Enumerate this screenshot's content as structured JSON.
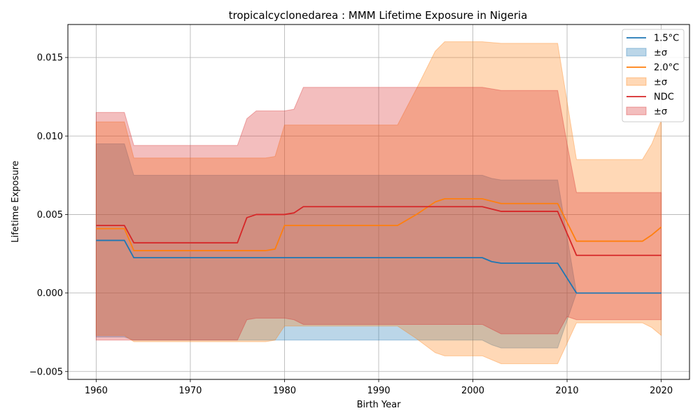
{
  "chart_data": {
    "type": "line",
    "title": "tropicalcyclonedarea : MMM Lifetime Exposure in Nigeria",
    "xlabel": "Birth Year",
    "ylabel": "Lifetime Exposure",
    "xlim": [
      1957,
      2023
    ],
    "ylim": [
      -0.0055,
      0.0171
    ],
    "xticks": [
      1960,
      1970,
      1980,
      1990,
      2000,
      2010,
      2020
    ],
    "xtick_labels": [
      "1960",
      "1970",
      "1980",
      "1990",
      "2000",
      "2010",
      "2020"
    ],
    "yticks": [
      -0.005,
      0.0,
      0.005,
      0.01,
      0.015
    ],
    "ytick_labels": [
      "−0.005",
      "0.000",
      "0.005",
      "0.010",
      "0.015"
    ],
    "grid": true,
    "legend_position": "top-right",
    "series": [
      {
        "name": "1.5°C",
        "band_label": "±σ",
        "color": "#1f77b4",
        "band_color": "#1f77b4",
        "x": [
          1960,
          1963,
          1964,
          1975,
          1979,
          1980,
          1992,
          2001,
          2002,
          2003,
          2009,
          2011,
          2020
        ],
        "y": [
          0.00335,
          0.00335,
          0.00225,
          0.00225,
          0.00225,
          0.00225,
          0.00225,
          0.00225,
          0.002,
          0.0019,
          0.0019,
          0.0,
          0.0
        ],
        "upper": [
          0.0095,
          0.0095,
          0.0075,
          0.0075,
          0.0075,
          0.0075,
          0.0075,
          0.0075,
          0.0073,
          0.0072,
          0.0072,
          0.0,
          0.0
        ],
        "lower": [
          -0.0028,
          -0.0028,
          -0.003,
          -0.003,
          -0.003,
          -0.003,
          -0.003,
          -0.003,
          -0.0033,
          -0.0035,
          -0.0035,
          0.0,
          0.0
        ]
      },
      {
        "name": "2.0°C",
        "band_label": "±σ",
        "color": "#ff7f0e",
        "band_color": "#ff7f0e",
        "x": [
          1960,
          1963,
          1964,
          1975,
          1978,
          1979,
          1980,
          1992,
          1994,
          1996,
          1997,
          2001,
          2003,
          2009,
          2011,
          2018,
          2019,
          2020
        ],
        "y": [
          0.0041,
          0.0041,
          0.0027,
          0.0027,
          0.0027,
          0.0028,
          0.0043,
          0.0043,
          0.005,
          0.0058,
          0.006,
          0.006,
          0.0057,
          0.0057,
          0.0033,
          0.0033,
          0.0037,
          0.0042
        ],
        "upper": [
          0.0109,
          0.0109,
          0.0086,
          0.0086,
          0.0086,
          0.0087,
          0.0107,
          0.0107,
          0.013,
          0.0154,
          0.016,
          0.016,
          0.0159,
          0.0159,
          0.0085,
          0.0085,
          0.0095,
          0.011
        ],
        "lower": [
          -0.0027,
          -0.0027,
          -0.0031,
          -0.0031,
          -0.0031,
          -0.003,
          -0.0021,
          -0.0021,
          -0.0029,
          -0.0038,
          -0.004,
          -0.004,
          -0.0045,
          -0.0045,
          -0.0019,
          -0.0019,
          -0.0022,
          -0.0027
        ]
      },
      {
        "name": "NDC",
        "band_label": "±σ",
        "color": "#d62728",
        "band_color": "#d62728",
        "x": [
          1960,
          1963,
          1964,
          1975,
          1976,
          1977,
          1980,
          1981,
          1982,
          2001,
          2003,
          2009,
          2010,
          2011,
          2020
        ],
        "y": [
          0.0043,
          0.0043,
          0.0032,
          0.0032,
          0.0048,
          0.005,
          0.005,
          0.0051,
          0.0055,
          0.0055,
          0.0052,
          0.0052,
          0.0038,
          0.0024,
          0.0024
        ],
        "upper": [
          0.0115,
          0.0115,
          0.0094,
          0.0094,
          0.0111,
          0.0116,
          0.0116,
          0.0117,
          0.0131,
          0.0131,
          0.0129,
          0.0129,
          0.0095,
          0.0064,
          0.0064
        ],
        "lower": [
          -0.003,
          -0.003,
          -0.003,
          -0.003,
          -0.0017,
          -0.0016,
          -0.0016,
          -0.0017,
          -0.002,
          -0.002,
          -0.0026,
          -0.0026,
          -0.0015,
          -0.0017,
          -0.0017
        ]
      }
    ]
  }
}
